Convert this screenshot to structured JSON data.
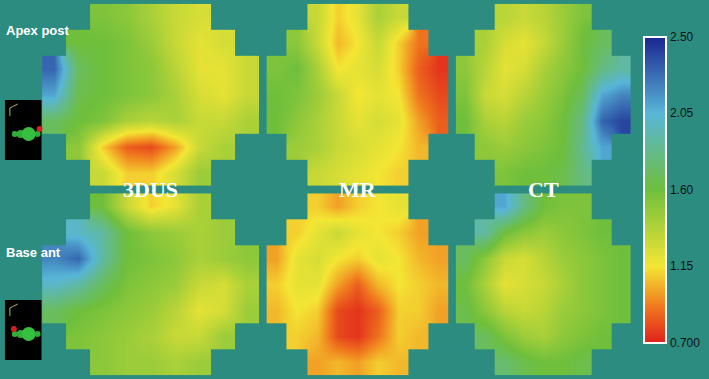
{
  "chart_data": {
    "type": "heatmap",
    "row_labels": [
      "Apex post",
      "Base ant"
    ],
    "column_labels": [
      "3DUS",
      "MR",
      "CT"
    ],
    "panels": [
      {
        "row": "Apex post",
        "column": "3DUS",
        "z": [
          [
            null,
            null,
            1.55,
            1.5,
            1.4,
            1.3,
            1.25,
            null,
            null
          ],
          [
            null,
            1.6,
            1.6,
            1.55,
            1.45,
            1.3,
            1.2,
            1.25,
            null
          ],
          [
            2.3,
            1.7,
            1.6,
            1.55,
            1.5,
            1.35,
            1.2,
            1.2,
            1.3
          ],
          [
            2.1,
            1.65,
            1.6,
            1.55,
            1.5,
            1.4,
            1.25,
            1.2,
            1.3
          ],
          [
            1.7,
            1.6,
            1.55,
            1.4,
            1.35,
            1.4,
            1.3,
            1.3,
            1.4
          ],
          [
            null,
            1.5,
            1.1,
            0.85,
            0.8,
            1.0,
            1.3,
            1.4,
            null
          ],
          [
            null,
            null,
            1.3,
            1.1,
            1.1,
            1.25,
            1.45,
            null,
            null
          ]
        ]
      },
      {
        "row": "Apex post",
        "column": "MR",
        "z": [
          [
            null,
            null,
            1.3,
            1.1,
            1.2,
            1.4,
            1.3,
            null,
            null
          ],
          [
            null,
            1.5,
            1.3,
            1.05,
            1.15,
            1.3,
            1.1,
            0.9,
            null
          ],
          [
            1.55,
            1.6,
            1.4,
            1.15,
            1.2,
            1.25,
            1.1,
            0.85,
            0.75
          ],
          [
            1.6,
            1.55,
            1.45,
            1.3,
            1.15,
            1.2,
            1.15,
            0.9,
            0.8
          ],
          [
            1.6,
            1.5,
            1.4,
            1.3,
            1.2,
            1.25,
            1.2,
            1.0,
            0.85
          ],
          [
            null,
            1.45,
            1.4,
            1.3,
            1.25,
            1.2,
            1.15,
            1.05,
            null
          ],
          [
            null,
            null,
            1.3,
            1.25,
            1.2,
            1.15,
            1.1,
            null,
            null
          ]
        ]
      },
      {
        "row": "Apex post",
        "column": "CT",
        "z": [
          [
            null,
            null,
            1.35,
            1.3,
            1.35,
            1.45,
            1.55,
            null,
            null
          ],
          [
            null,
            1.4,
            1.25,
            1.2,
            1.3,
            1.45,
            1.6,
            1.7,
            null
          ],
          [
            1.5,
            1.35,
            1.2,
            1.25,
            1.4,
            1.5,
            1.6,
            1.8,
            1.9
          ],
          [
            1.55,
            1.3,
            1.25,
            1.35,
            1.45,
            1.55,
            1.7,
            2.1,
            2.2
          ],
          [
            1.6,
            1.4,
            1.35,
            1.45,
            1.5,
            1.6,
            1.8,
            2.3,
            2.4
          ],
          [
            null,
            1.5,
            1.45,
            1.5,
            1.55,
            1.6,
            1.85,
            2.1,
            null
          ],
          [
            null,
            null,
            1.55,
            1.6,
            1.6,
            1.65,
            1.8,
            null,
            null
          ]
        ]
      },
      {
        "row": "Base ant",
        "column": "3DUS",
        "z": [
          [
            null,
            null,
            1.6,
            1.3,
            1.1,
            1.2,
            1.4,
            null,
            null
          ],
          [
            null,
            2.0,
            1.9,
            1.6,
            1.5,
            1.45,
            1.4,
            1.45,
            null
          ],
          [
            2.2,
            2.3,
            1.9,
            1.6,
            1.55,
            1.5,
            1.4,
            1.45,
            1.5
          ],
          [
            2.0,
            1.9,
            1.7,
            1.55,
            1.5,
            1.45,
            1.3,
            1.25,
            1.4
          ],
          [
            1.7,
            1.6,
            1.55,
            1.5,
            1.45,
            1.35,
            1.2,
            1.25,
            1.45
          ],
          [
            null,
            1.55,
            1.5,
            1.45,
            1.4,
            1.3,
            1.3,
            1.45,
            null
          ],
          [
            null,
            null,
            1.5,
            1.45,
            1.45,
            1.4,
            1.45,
            null,
            null
          ]
        ]
      },
      {
        "row": "Base ant",
        "column": "MR",
        "z": [
          [
            null,
            null,
            1.1,
            1.0,
            1.1,
            1.15,
            1.2,
            null,
            null
          ],
          [
            null,
            1.1,
            1.2,
            1.3,
            1.2,
            1.15,
            1.1,
            1.0,
            null
          ],
          [
            1.0,
            1.2,
            1.25,
            1.15,
            1.1,
            1.2,
            1.15,
            1.05,
            1.0
          ],
          [
            1.1,
            1.2,
            1.2,
            1.0,
            0.85,
            1.05,
            1.15,
            1.1,
            1.05
          ],
          [
            1.05,
            1.15,
            1.1,
            0.8,
            0.75,
            0.85,
            1.1,
            1.1,
            1.0
          ],
          [
            null,
            1.1,
            1.05,
            0.8,
            0.75,
            0.9,
            1.1,
            1.05,
            null
          ],
          [
            null,
            null,
            1.0,
            1.05,
            1.0,
            1.1,
            1.05,
            null,
            null
          ]
        ]
      },
      {
        "row": "Base ant",
        "column": "CT",
        "z": [
          [
            null,
            null,
            2.1,
            1.8,
            1.6,
            1.55,
            1.55,
            null,
            null
          ],
          [
            null,
            1.9,
            1.6,
            1.5,
            1.45,
            1.5,
            1.55,
            1.6,
            null
          ],
          [
            1.7,
            1.5,
            1.3,
            1.25,
            1.35,
            1.45,
            1.5,
            1.55,
            1.6
          ],
          [
            1.6,
            1.4,
            1.2,
            1.25,
            1.3,
            1.4,
            1.5,
            1.55,
            1.6
          ],
          [
            1.65,
            1.5,
            1.35,
            1.3,
            1.35,
            1.45,
            1.5,
            1.55,
            1.6
          ],
          [
            null,
            1.7,
            1.55,
            1.45,
            1.4,
            1.5,
            1.55,
            1.6,
            null
          ],
          [
            null,
            null,
            1.75,
            1.65,
            1.6,
            1.6,
            1.65,
            null,
            null
          ]
        ]
      }
    ],
    "colorbar": {
      "range": [
        0.7,
        2.5
      ],
      "ticks": [
        {
          "value": 0.7,
          "label": "0.700"
        },
        1.15,
        {
          "value": 1.6,
          "label": "1.60"
        },
        2.05,
        {
          "value": 2.5,
          "label": "2.50"
        }
      ]
    }
  }
}
